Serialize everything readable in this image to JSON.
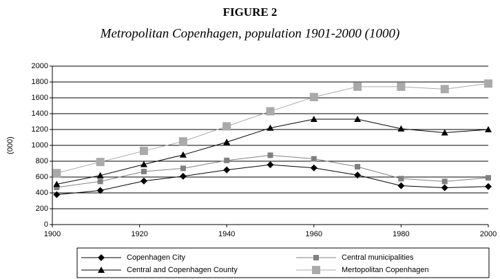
{
  "chart_data": {
    "type": "line",
    "title": "FIGURE 2",
    "subtitle": "Metropolitan Copenhagen, population 1901-2000 (1000)",
    "y_label": "(000)",
    "x": [
      1901,
      1911,
      1921,
      1930,
      1940,
      1950,
      1960,
      1970,
      1980,
      1990,
      2000
    ],
    "series": [
      {
        "name": "Copenhagen City",
        "color": "#000000",
        "marker": "diamond",
        "values": [
          378,
          430,
          550,
          610,
          690,
          755,
          715,
          625,
          490,
          465,
          480
        ]
      },
      {
        "name": "Central municipalities",
        "color": "#808080",
        "marker": "square",
        "values": [
          470,
          545,
          670,
          710,
          810,
          875,
          830,
          730,
          580,
          545,
          590
        ]
      },
      {
        "name": "Central and Copenhagen County",
        "color": "#000000",
        "marker": "triangle",
        "values": [
          510,
          620,
          760,
          880,
          1040,
          1220,
          1330,
          1330,
          1210,
          1160,
          1200
        ]
      },
      {
        "name": "Mertopolitan Copenhagen",
        "color": "#aaaaaa",
        "marker": "bigsquare",
        "values": [
          650,
          790,
          930,
          1050,
          1240,
          1430,
          1610,
          1740,
          1740,
          1710,
          1780
        ]
      }
    ],
    "xlim": [
      1900,
      2000
    ],
    "xticks": [
      1900,
      1920,
      1940,
      1960,
      1980,
      2000
    ],
    "ylim": [
      0,
      2000
    ],
    "yticks": [
      0,
      200,
      400,
      600,
      800,
      1000,
      1200,
      1400,
      1600,
      1800,
      2000
    ],
    "grid": true,
    "legend": "bottom"
  }
}
